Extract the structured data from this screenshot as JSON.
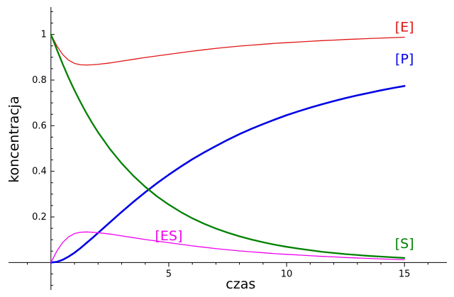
{
  "chart_data": {
    "type": "line",
    "title": "",
    "xlabel": "czas",
    "ylabel": "koncentracja",
    "xlim": [
      -1.8,
      16.8
    ],
    "ylim": [
      -0.12,
      1.12
    ],
    "grid": false,
    "x_ticks": [
      5,
      10,
      15
    ],
    "y_ticks": [
      0.2,
      0.4,
      0.6,
      0.8,
      1
    ],
    "x_tick_labels": [
      "5",
      "10",
      "15"
    ],
    "y_tick_labels": [
      "0.2",
      "0.4",
      "0.6",
      "0.8",
      "1"
    ],
    "x": [
      0,
      0.25,
      0.5,
      0.75,
      1,
      1.25,
      1.5,
      1.75,
      2,
      2.5,
      3,
      3.5,
      4,
      4.5,
      5,
      5.5,
      6,
      6.5,
      7,
      7.5,
      8,
      8.5,
      9,
      9.5,
      10,
      10.5,
      11,
      11.5,
      12,
      12.5,
      13,
      13.5,
      14,
      14.5,
      15
    ],
    "series": [
      {
        "name": "[E]",
        "color": "#e01515",
        "line_width": 1.3,
        "values": [
          1.0,
          0.95,
          0.912,
          0.887,
          0.873,
          0.867,
          0.866,
          0.867,
          0.869,
          0.875,
          0.883,
          0.891,
          0.899,
          0.906,
          0.913,
          0.92,
          0.927,
          0.933,
          0.939,
          0.944,
          0.949,
          0.953,
          0.957,
          0.961,
          0.964,
          0.967,
          0.97,
          0.973,
          0.975,
          0.978,
          0.98,
          0.982,
          0.984,
          0.986,
          0.988
        ]
      },
      {
        "name": "[P]",
        "color": "#0000e6",
        "line_width": 2.6,
        "values": [
          0.0,
          0.003,
          0.012,
          0.026,
          0.043,
          0.063,
          0.085,
          0.107,
          0.13,
          0.176,
          0.222,
          0.266,
          0.308,
          0.348,
          0.385,
          0.42,
          0.453,
          0.483,
          0.511,
          0.538,
          0.563,
          0.586,
          0.607,
          0.627,
          0.646,
          0.663,
          0.679,
          0.694,
          0.708,
          0.721,
          0.733,
          0.744,
          0.755,
          0.765,
          0.774
        ]
      },
      {
        "name": "[S]",
        "color": "#008000",
        "line_width": 2.3,
        "values": [
          1.0,
          0.934,
          0.87,
          0.81,
          0.755,
          0.704,
          0.656,
          0.612,
          0.571,
          0.498,
          0.435,
          0.38,
          0.332,
          0.29,
          0.254,
          0.222,
          0.194,
          0.17,
          0.149,
          0.131,
          0.115,
          0.101,
          0.089,
          0.078,
          0.069,
          0.061,
          0.054,
          0.047,
          0.042,
          0.037,
          0.033,
          0.029,
          0.026,
          0.023,
          0.02
        ]
      },
      {
        "name": "[ES]",
        "color": "#ee00ee",
        "line_width": 1.3,
        "values": [
          0.0,
          0.05,
          0.088,
          0.113,
          0.127,
          0.133,
          0.134,
          0.133,
          0.131,
          0.125,
          0.117,
          0.109,
          0.101,
          0.094,
          0.087,
          0.08,
          0.073,
          0.067,
          0.061,
          0.056,
          0.051,
          0.047,
          0.043,
          0.039,
          0.036,
          0.033,
          0.03,
          0.027,
          0.025,
          0.022,
          0.02,
          0.018,
          0.016,
          0.014,
          0.012
        ]
      }
    ],
    "annotations": [
      {
        "text": "[E]",
        "x": 15.0,
        "y": 1.035,
        "color": "#e01515"
      },
      {
        "text": "[P]",
        "x": 15.0,
        "y": 0.895,
        "color": "#0000e6"
      },
      {
        "text": "[ES]",
        "x": 5.0,
        "y": 0.12,
        "color": "#ee00ee"
      },
      {
        "text": "[S]",
        "x": 15.0,
        "y": 0.085,
        "color": "#008000"
      }
    ]
  }
}
